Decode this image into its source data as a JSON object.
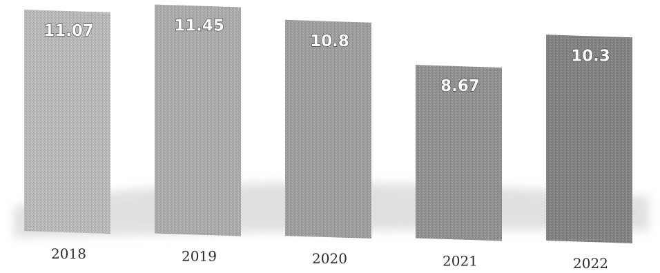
{
  "chart_data": {
    "type": "bar",
    "categories": [
      "2018",
      "2019",
      "2020",
      "2021",
      "2022"
    ],
    "values": [
      11.07,
      11.45,
      10.8,
      8.67,
      10.3
    ],
    "value_labels": [
      "11.07",
      "11.45",
      "10.8",
      "8.67",
      "10.3"
    ],
    "title": "",
    "xlabel": "",
    "ylabel": "",
    "ylim": [
      0,
      12
    ],
    "grid": false,
    "legend": "none",
    "colors": {
      "bar_light": "#b8b8b8",
      "bar_dark": "#8a8a8a",
      "shadow": "#d4d4d4"
    }
  }
}
